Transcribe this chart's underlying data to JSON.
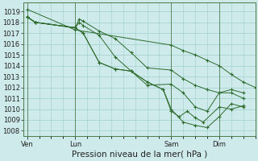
{
  "background_color": "#ceeaea",
  "grid_color": "#9fcece",
  "line_color": "#2d6b2d",
  "marker_color": "#2d6b2d",
  "xlabel": "Pression niveau de la mer( hPa )",
  "ylim": [
    1007.5,
    1019.8
  ],
  "yticks": [
    1008,
    1009,
    1010,
    1011,
    1012,
    1013,
    1014,
    1015,
    1016,
    1017,
    1018,
    1019
  ],
  "xtick_labels": [
    "Ven",
    "Lun",
    "Sam",
    "Dim"
  ],
  "xtick_positions": [
    0,
    12,
    36,
    48
  ],
  "xlim": [
    -1,
    57
  ],
  "tick_fontsize": 6,
  "xlabel_fontsize": 7.5,
  "series": [
    {
      "x": [
        0,
        12,
        36,
        39,
        42,
        45,
        48,
        51,
        54,
        57
      ],
      "y": [
        1019.2,
        1017.3,
        1015.9,
        1015.4,
        1015.0,
        1014.5,
        1014.0,
        1013.2,
        1012.5,
        1012.0
      ]
    },
    {
      "x": [
        0,
        2,
        12,
        13,
        14,
        18,
        22,
        26,
        30,
        36,
        39,
        42,
        45,
        48,
        51,
        54
      ],
      "y": [
        1018.5,
        1018.0,
        1017.5,
        1018.3,
        1018.1,
        1017.2,
        1016.5,
        1015.2,
        1013.8,
        1013.6,
        1012.8,
        1012.2,
        1011.8,
        1011.5,
        1011.8,
        1011.5
      ]
    },
    {
      "x": [
        0,
        2,
        12,
        13,
        14,
        18,
        22,
        26,
        30,
        36,
        39,
        42,
        45,
        48,
        51,
        54
      ],
      "y": [
        1018.5,
        1018.0,
        1017.5,
        1018.0,
        1017.7,
        1016.8,
        1014.8,
        1013.5,
        1012.2,
        1012.3,
        1011.5,
        1010.2,
        1009.8,
        1011.5,
        1011.5,
        1011.0
      ]
    },
    {
      "x": [
        0,
        2,
        12,
        14,
        18,
        22,
        26,
        30,
        34,
        36,
        39,
        42,
        45,
        48,
        51,
        54
      ],
      "y": [
        1018.5,
        1018.0,
        1017.5,
        1017.0,
        1014.3,
        1013.7,
        1013.5,
        1012.5,
        1011.8,
        1010.0,
        1008.8,
        1008.5,
        1008.3,
        1009.3,
        1010.5,
        1010.2
      ]
    },
    {
      "x": [
        0,
        2,
        12,
        14,
        18,
        22,
        26,
        30,
        34,
        36,
        38,
        40,
        42,
        44,
        48,
        51,
        54
      ],
      "y": [
        1018.5,
        1018.0,
        1017.5,
        1017.0,
        1014.3,
        1013.7,
        1013.5,
        1012.5,
        1011.8,
        1009.8,
        1009.3,
        1009.8,
        1009.2,
        1008.8,
        1010.2,
        1010.0,
        1010.3
      ]
    }
  ]
}
